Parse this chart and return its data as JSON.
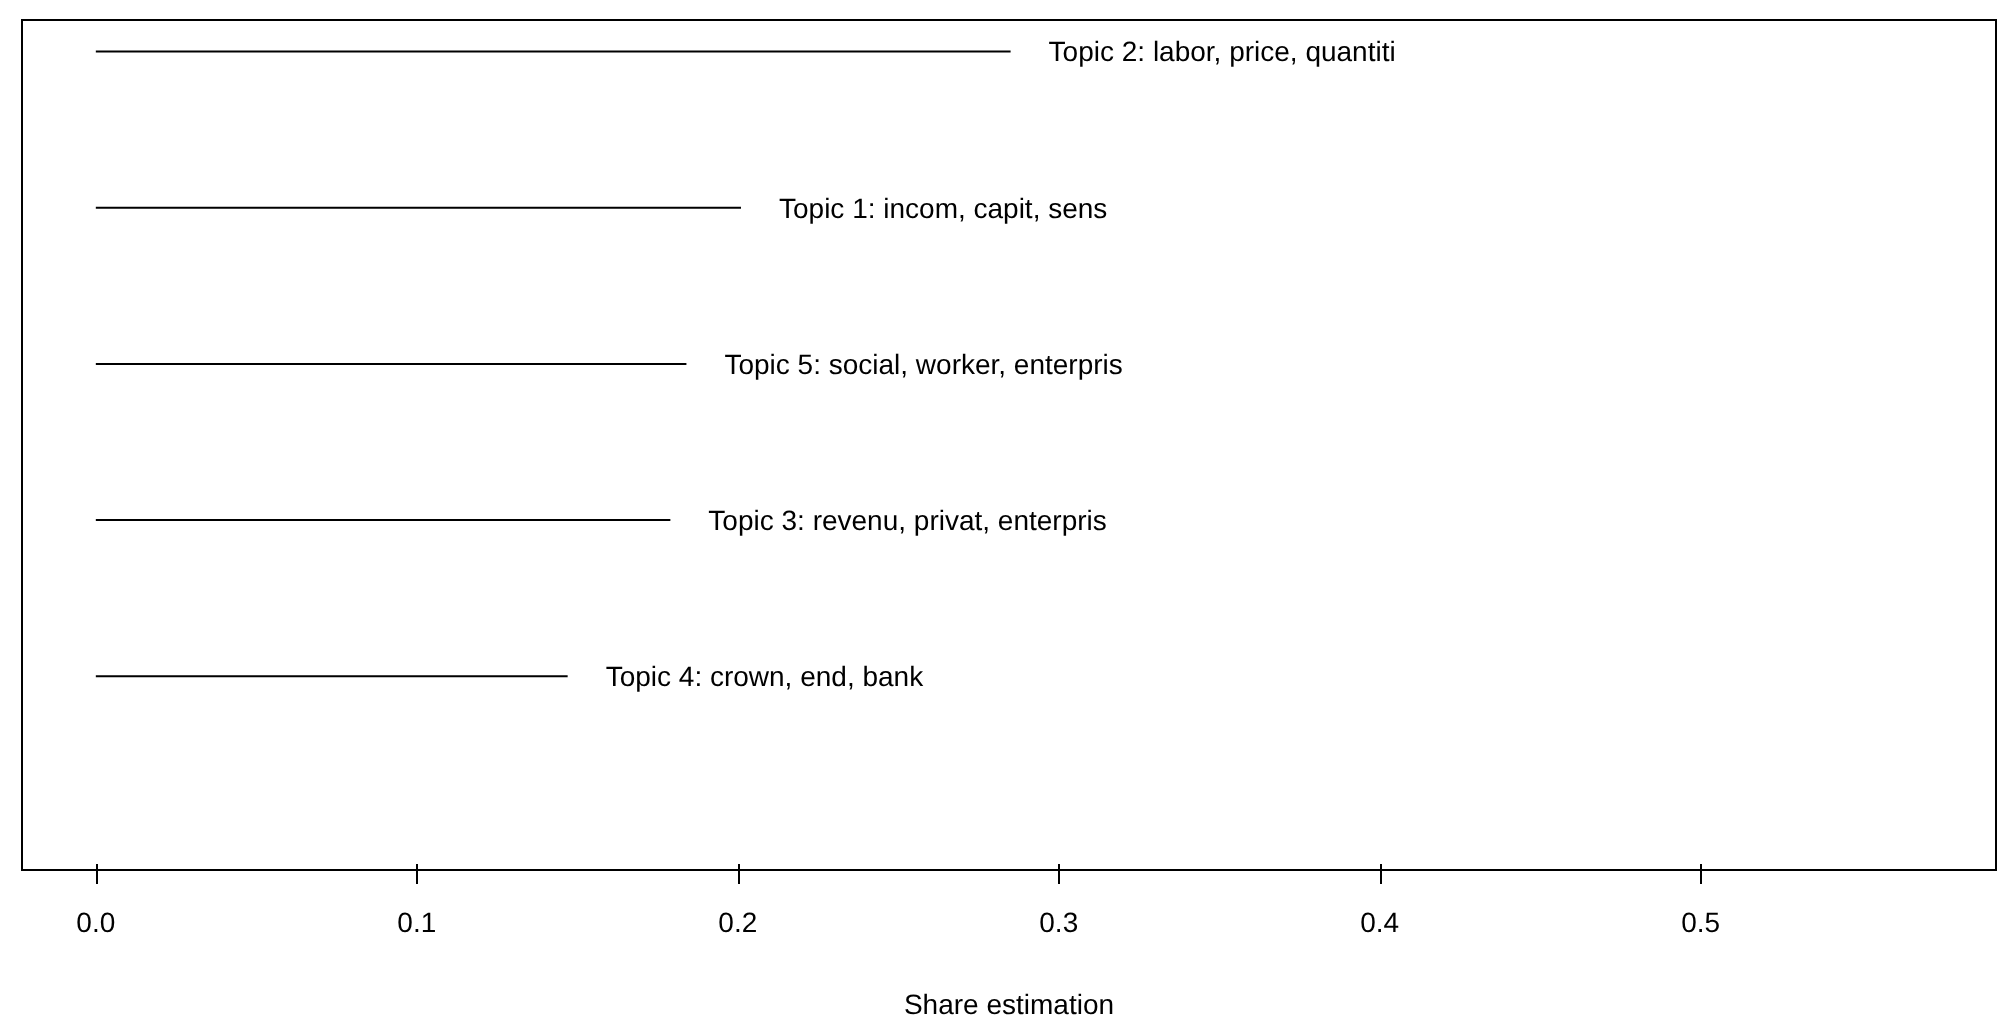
{
  "chart_data": {
    "type": "bar",
    "orientation": "horizontal",
    "categories": [
      "Topic 2: labor, price, quantiti",
      "Topic 1: incom, capit, sens",
      "Topic 5: social, worker, enterpris",
      "Topic 3: revenu, privat, enterpris",
      "Topic 4: crown, end, bank"
    ],
    "values": [
      0.285,
      0.201,
      0.184,
      0.179,
      0.147
    ],
    "color": "#000000",
    "xlabel": "Share estimation",
    "xlim": [
      -0.023,
      0.592
    ],
    "xticks": [
      {
        "value": 0,
        "label": "0.0"
      },
      0.1,
      0.2,
      0.3,
      0.4,
      0.5
    ],
    "tick_labels": "x"
  }
}
